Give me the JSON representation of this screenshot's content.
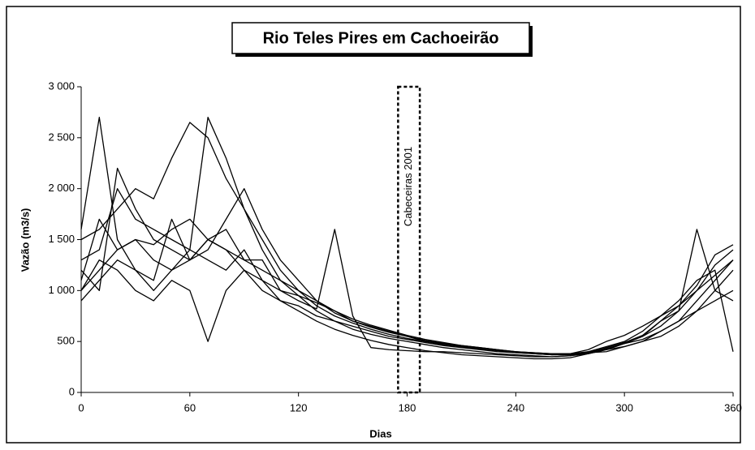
{
  "chart_data": {
    "type": "line",
    "title": "Rio Teles Pires em Cachoeirão",
    "x_label": "Dias",
    "y_label": "Vazão (m3/s)",
    "x": [
      0,
      10,
      20,
      30,
      40,
      50,
      60,
      70,
      80,
      90,
      100,
      110,
      120,
      130,
      140,
      150,
      160,
      170,
      180,
      190,
      200,
      210,
      220,
      230,
      240,
      250,
      260,
      270,
      280,
      290,
      300,
      310,
      320,
      330,
      340,
      350,
      360
    ],
    "series": [
      {
        "color": "#000000",
        "values": [
          1000,
          1200,
          1400,
          1500,
          1450,
          1600,
          1700,
          1500,
          1400,
          1300,
          1200,
          1100,
          1000,
          900,
          800,
          700,
          650,
          600,
          550,
          500,
          480,
          450,
          430,
          410,
          400,
          390,
          380,
          380,
          390,
          400,
          450,
          500,
          600,
          700,
          900,
          1100,
          1300
        ]
      },
      {
        "color": "#000000",
        "values": [
          1500,
          1600,
          1800,
          2000,
          1900,
          2300,
          2650,
          2500,
          2100,
          1800,
          1500,
          1200,
          1000,
          850,
          750,
          680,
          620,
          570,
          530,
          500,
          470,
          450,
          430,
          410,
          390,
          380,
          370,
          380,
          400,
          420,
          450,
          500,
          550,
          650,
          800,
          1000,
          1200
        ]
      },
      {
        "color": "#000000",
        "values": [
          900,
          1100,
          1300,
          1200,
          1000,
          1200,
          1400,
          2700,
          2300,
          1800,
          1400,
          1100,
          950,
          800,
          700,
          650,
          600,
          550,
          520,
          490,
          460,
          440,
          420,
          400,
          390,
          380,
          370,
          370,
          380,
          420,
          480,
          550,
          700,
          800,
          1000,
          1250,
          1400
        ]
      },
      {
        "color": "#000000",
        "values": [
          1300,
          1400,
          2000,
          1700,
          1600,
          1500,
          1400,
          1300,
          1200,
          1400,
          1100,
          1000,
          900,
          820,
          1600,
          750,
          440,
          420,
          410,
          400,
          400,
          390,
          380,
          370,
          360,
          350,
          350,
          360,
          400,
          450,
          500,
          600,
          750,
          900,
          1100,
          1200,
          400
        ]
      },
      {
        "color": "#000000",
        "values": [
          1100,
          1700,
          1400,
          1500,
          1300,
          1200,
          1300,
          1400,
          1700,
          2000,
          1600,
          1300,
          1100,
          900,
          780,
          700,
          640,
          590,
          550,
          510,
          480,
          460,
          440,
          420,
          400,
          390,
          380,
          380,
          420,
          500,
          560,
          650,
          750,
          850,
          1050,
          1350,
          1450
        ]
      },
      {
        "color": "#000000",
        "values": [
          1000,
          1300,
          1200,
          1000,
          900,
          1100,
          1000,
          500,
          1000,
          1200,
          1100,
          900,
          850,
          750,
          700,
          620,
          570,
          530,
          500,
          470,
          440,
          420,
          400,
          380,
          370,
          360,
          350,
          360,
          380,
          420,
          480,
          550,
          650,
          800,
          1600,
          1000,
          900
        ]
      },
      {
        "color": "#000000",
        "values": [
          1200,
          1000,
          2200,
          1800,
          1500,
          1400,
          1300,
          1500,
          1600,
          1300,
          1300,
          1000,
          950,
          880,
          800,
          720,
          660,
          610,
          560,
          520,
          490,
          460,
          440,
          420,
          400,
          380,
          370,
          370,
          390,
          440,
          490,
          560,
          700,
          850,
          1000,
          1150,
          1300
        ]
      },
      {
        "color": "#000000",
        "values": [
          1600,
          2700,
          1500,
          1200,
          1100,
          1700,
          1300,
          1500,
          1400,
          1200,
          1000,
          900,
          800,
          700,
          620,
          560,
          510,
          470,
          440,
          410,
          390,
          370,
          360,
          350,
          340,
          330,
          330,
          340,
          380,
          430,
          480,
          520,
          600,
          700,
          800,
          900,
          1000
        ]
      }
    ],
    "xlim": [
      0,
      360
    ],
    "xticks": [
      0,
      60,
      120,
      180,
      240,
      300,
      360
    ],
    "ylim": [
      0,
      3000
    ],
    "yticks": [
      0,
      500,
      {
        "value": 1000,
        "label": "1 000"
      },
      {
        "value": 1500,
        "label": "1 500"
      },
      {
        "value": 2000,
        "label": "2 000"
      },
      {
        "value": 2500,
        "label": "2 500"
      },
      {
        "value": 3000,
        "label": "3 000"
      }
    ],
    "grid": false,
    "annotations": [
      {
        "label": "Cabeceiras 2001",
        "x_range": [
          175,
          187
        ]
      }
    ]
  }
}
